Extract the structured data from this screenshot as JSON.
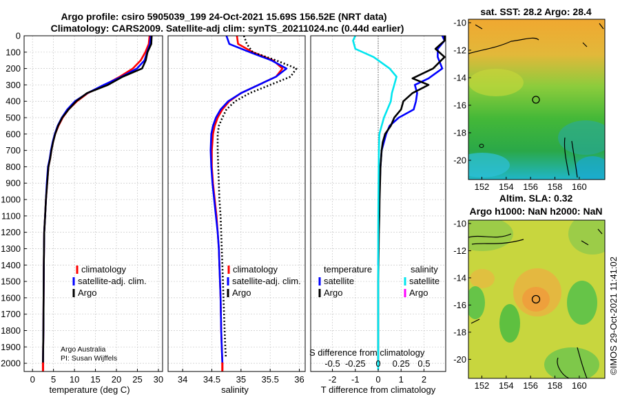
{
  "header": {
    "line1": "Argo profile: csiro 5905039_199 24-Oct-2021 15.69S 156.52E (NRT data)",
    "line2": "Climatology: CARS2009. Satellite-adj clim: synTS_20211024.nc (0.44d earlier)"
  },
  "colors": {
    "climatology": "#ff0000",
    "satellite_adj": "#0000ff",
    "argo": "#000000",
    "satellite_cyan": "#00e5ee",
    "salinity_argo": "#ff00ff"
  },
  "depth_ticks": [
    "0",
    "100",
    "200",
    "300",
    "400",
    "500",
    "600",
    "700",
    "800",
    "900",
    "1000",
    "1100",
    "1200",
    "1300",
    "1400",
    "1500",
    "1600",
    "1700",
    "1800",
    "1900",
    "2000"
  ],
  "credit": {
    "line1": "Argo Australia",
    "line2": "PI: Susan Wijffels"
  },
  "timestamp": "©IMOS 29-Oct-2021 11:41:02",
  "legend1": {
    "climatology": "climatology",
    "satellite": "satellite-adj. clim.",
    "argo": "Argo"
  },
  "legend2": {
    "climatology": "climatology",
    "satellite": "satellite-adj. clim.",
    "argo": "Argo"
  },
  "legend3": {
    "temp_head": "temperature",
    "sal_head": "salinity",
    "temp_sat": "satellite",
    "temp_argo": "Argo",
    "sal_sat": "satellite",
    "sal_argo": "Argo"
  },
  "map1": {
    "title": "sat. SST: 28.2 Argo: 28.4",
    "yticks": [
      "-10",
      "-12",
      "-14",
      "-16",
      "-18",
      "-20"
    ],
    "xticks": [
      "152",
      "154",
      "156",
      "158",
      "160"
    ]
  },
  "map2": {
    "title1": "Altim. SLA: 0.32",
    "title2": "Argo h1000: NaN h2000: NaN",
    "yticks": [
      "-10",
      "-12",
      "-14",
      "-16",
      "-18",
      "-20"
    ],
    "xticks": [
      "152",
      "154",
      "156",
      "158",
      "160"
    ]
  },
  "chart_data": [
    {
      "type": "line",
      "xlabel": "temperature (deg C)",
      "ylabel": "",
      "xlim": [
        -2,
        31
      ],
      "ylim": [
        0,
        2050
      ],
      "y_reversed": true,
      "xticks": [
        "0",
        "5",
        "10",
        "15",
        "20",
        "25",
        "30"
      ],
      "series": [
        {
          "name": "climatology",
          "color": "#ff0000",
          "x": [
            27.9,
            27.7,
            26.9,
            25.8,
            23.9,
            20.8,
            17.2,
            13.2,
            10.6,
            8.6,
            7.2,
            6.2,
            5.4,
            4.9,
            4.5,
            4.2,
            3.8,
            3.5,
            3.2,
            3.0,
            2.8,
            2.7,
            2.65,
            2.6,
            2.55,
            2.5,
            2.5
          ],
          "y": [
            0,
            50,
            100,
            150,
            200,
            250,
            300,
            350,
            400,
            450,
            500,
            550,
            600,
            650,
            700,
            750,
            800,
            900,
            1000,
            1100,
            1200,
            1400,
            1600,
            1800,
            1900,
            2000,
            2040
          ]
        },
        {
          "name": "satellite-adj. clim.",
          "color": "#0000ff",
          "x": [
            28.2,
            28.0,
            27.3,
            26.7,
            24.9,
            21.2,
            17.0,
            13.1,
            10.1,
            8.3,
            7.0,
            6.0,
            5.3,
            4.8,
            4.4,
            4.1,
            3.7,
            3.4,
            3.2,
            3.0,
            2.8,
            2.7,
            2.65,
            2.6,
            2.55,
            2.5,
            2.5
          ],
          "y": [
            0,
            50,
            100,
            150,
            200,
            250,
            300,
            350,
            400,
            450,
            500,
            550,
            600,
            650,
            700,
            750,
            800,
            900,
            1000,
            1100,
            1200,
            1400,
            1600,
            1800,
            1900,
            2000,
            2040
          ]
        },
        {
          "name": "Argo",
          "color": "#000000",
          "x": [
            28.4,
            28.3,
            27.4,
            27.0,
            26.1,
            21.5,
            18.0,
            13.0,
            10.4,
            8.6,
            7.1,
            6.1,
            5.4,
            4.9,
            4.5,
            4.2,
            3.8,
            3.5,
            3.2,
            3.0,
            2.8,
            2.7,
            2.65,
            2.6,
            2.55,
            2.5,
            2.5
          ],
          "y": [
            0,
            50,
            100,
            150,
            200,
            250,
            300,
            350,
            400,
            450,
            500,
            550,
            600,
            650,
            700,
            750,
            800,
            900,
            1000,
            1100,
            1200,
            1400,
            1600,
            1800,
            1900,
            2000,
            2040
          ]
        }
      ]
    },
    {
      "type": "line",
      "xlabel": "salinity",
      "ylabel": "",
      "xlim": [
        33.75,
        36.1
      ],
      "ylim": [
        0,
        2050
      ],
      "y_reversed": true,
      "xticks": [
        "34",
        "34.5",
        "35",
        "35.5",
        "36"
      ],
      "series": [
        {
          "name": "climatology",
          "color": "#ff0000",
          "x": [
            34.93,
            34.95,
            35.2,
            35.55,
            35.71,
            35.6,
            35.3,
            35.0,
            34.8,
            34.68,
            34.6,
            34.55,
            34.52,
            34.5,
            34.5,
            34.52,
            34.55,
            34.58,
            34.6,
            34.62,
            34.63,
            34.65,
            34.66,
            34.67,
            34.68,
            34.68
          ],
          "y": [
            0,
            50,
            100,
            150,
            200,
            250,
            300,
            350,
            400,
            450,
            500,
            550,
            600,
            700,
            800,
            900,
            1000,
            1100,
            1200,
            1300,
            1400,
            1600,
            1800,
            1900,
            2000,
            2040
          ]
        },
        {
          "name": "satellite-adj. clim.",
          "color": "#0000ff",
          "x": [
            34.75,
            34.8,
            35.15,
            35.52,
            35.78,
            35.6,
            35.3,
            35.0,
            34.78,
            34.65,
            34.57,
            34.52,
            34.49,
            34.48,
            34.49,
            34.51,
            34.54,
            34.57,
            34.6,
            34.62,
            34.63,
            34.65,
            34.66,
            34.67,
            34.68,
            34.68
          ],
          "y": [
            0,
            50,
            100,
            150,
            200,
            250,
            300,
            350,
            400,
            450,
            500,
            550,
            600,
            700,
            800,
            900,
            1000,
            1100,
            1200,
            1300,
            1400,
            1600,
            1800,
            1900,
            2000,
            2040
          ]
        },
        {
          "name": "Argo",
          "color": "#000000",
          "x": [
            35.05,
            35.1,
            35.2,
            35.6,
            35.95,
            35.85,
            35.5,
            35.15,
            34.9,
            34.75,
            34.68,
            34.62,
            34.6,
            34.6,
            34.61,
            34.62,
            34.63,
            34.65,
            34.66,
            34.67,
            34.68,
            34.7,
            34.72,
            34.73,
            34.74
          ],
          "y": [
            0,
            50,
            100,
            150,
            200,
            250,
            300,
            350,
            400,
            450,
            500,
            550,
            600,
            700,
            800,
            900,
            1000,
            1100,
            1200,
            1300,
            1400,
            1600,
            1800,
            1900,
            1960
          ]
        }
      ]
    },
    {
      "type": "line",
      "xlabel": "T difference from climatology",
      "ylabel": "",
      "xlim": [
        -2.95,
        2.95
      ],
      "ylim": [
        0,
        2050
      ],
      "y_reversed": true,
      "xticks": [
        "-2",
        "-1",
        "0",
        "1",
        "2"
      ],
      "top_xlabel": "S difference from climatology",
      "top_xticks": [
        "-0.5",
        "-0.25",
        "0",
        "0.25",
        "0.5"
      ],
      "series": [
        {
          "name": "temperature satellite",
          "color": "#0000ff",
          "x": [
            2.8,
            2.9,
            2.6,
            2.6,
            2.8,
            2.2,
            1.6,
            1.7,
            1.65,
            1.55,
            0.9,
            0.5,
            0.35,
            0.25,
            0.15,
            0.1,
            0.07,
            0.05,
            0.03,
            0.02,
            0.01,
            0.0
          ],
          "y": [
            0,
            30,
            80,
            130,
            200,
            260,
            300,
            350,
            400,
            450,
            500,
            550,
            600,
            650,
            700,
            800,
            900,
            1000,
            1100,
            1200,
            1300,
            1400
          ]
        },
        {
          "name": "temperature Argo",
          "color": "#000000",
          "x": [
            2.9,
            2.9,
            2.5,
            2.9,
            2.4,
            1.5,
            2.2,
            1.5,
            1.1,
            1.0,
            0.7,
            0.55,
            0.3,
            0.2,
            0.15,
            0.1,
            0.08,
            0.06,
            0.05,
            0.03,
            0.02,
            0.0,
            0.0,
            0.0
          ],
          "y": [
            0,
            30,
            80,
            130,
            200,
            260,
            300,
            350,
            400,
            450,
            500,
            550,
            600,
            650,
            700,
            800,
            900,
            1000,
            1100,
            1200,
            1300,
            1500,
            1800,
            2000
          ]
        },
        {
          "name": "salinity satellite",
          "color": "#00e5ee",
          "x": [
            -1.0,
            -1.1,
            -1.0,
            -0.2,
            0.5,
            0.8,
            0.7,
            0.6,
            0.55,
            0.4,
            0.25,
            0.15,
            0.05,
            0.03,
            0.02,
            0.01,
            0.0,
            0.0,
            0.0,
            0.0
          ],
          "y": [
            0,
            30,
            80,
            130,
            200,
            250,
            300,
            350,
            400,
            450,
            500,
            550,
            600,
            700,
            800,
            1000,
            1200,
            1500,
            1800,
            2040
          ]
        }
      ]
    }
  ]
}
